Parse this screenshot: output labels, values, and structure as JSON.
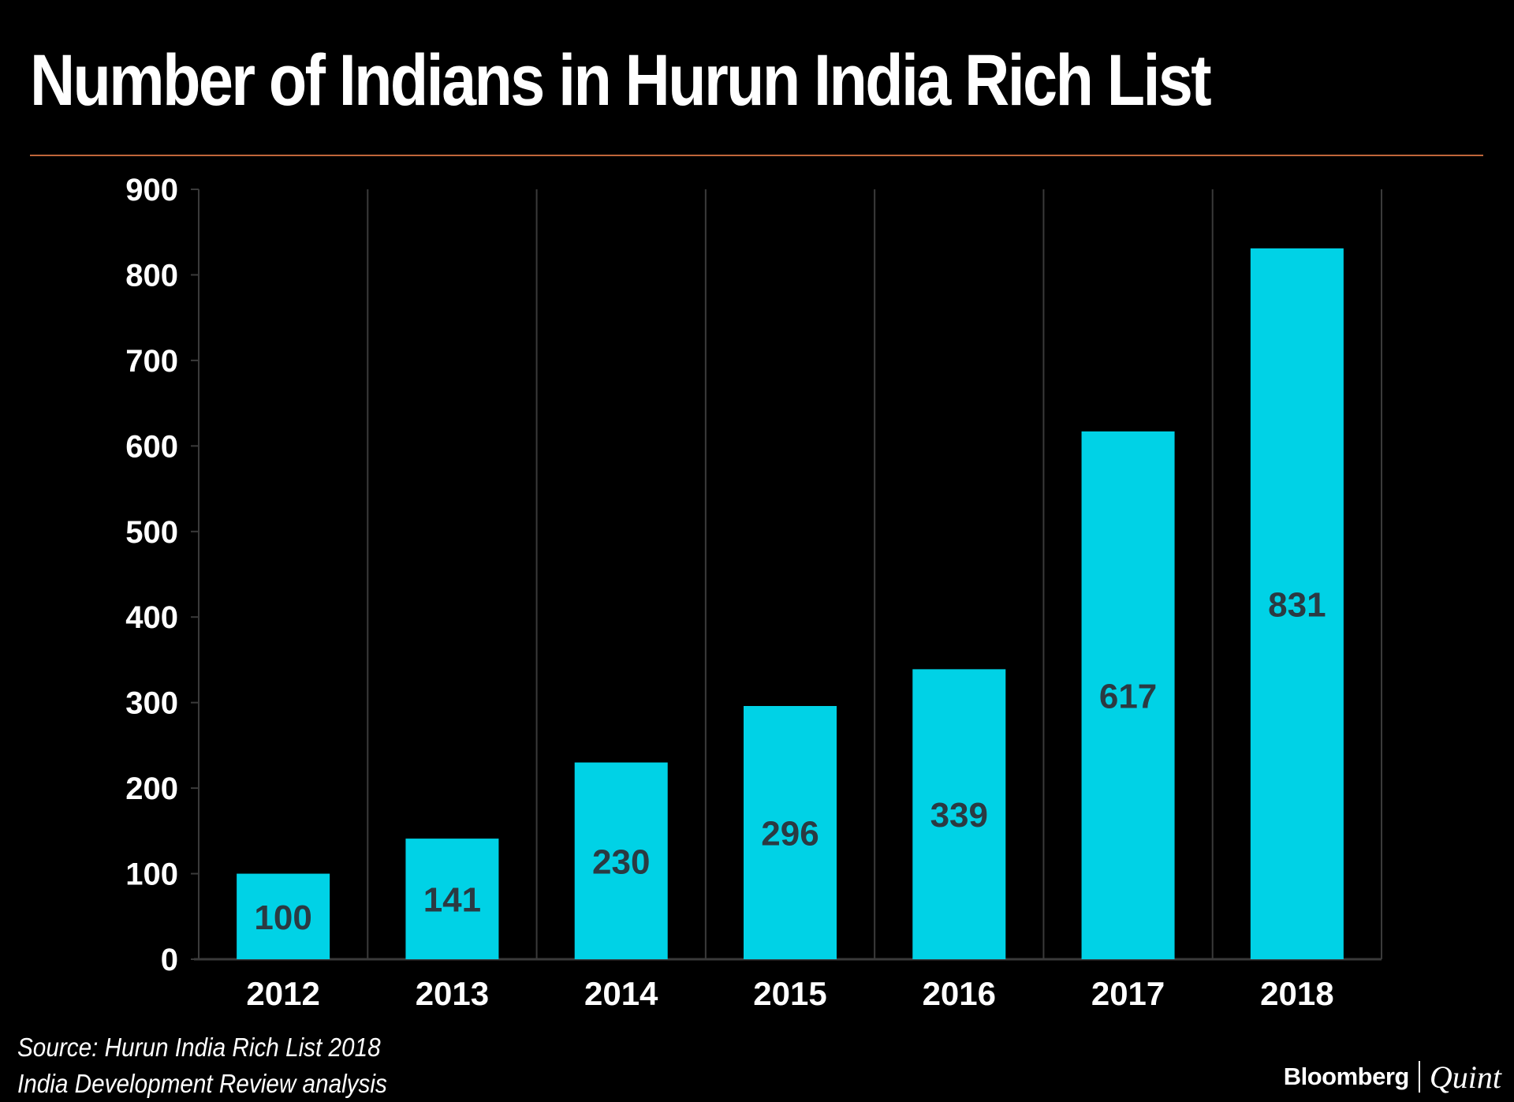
{
  "title": "Number of Indians in Hurun India Rich List",
  "footer": {
    "source_line1": "Source: Hurun India Rich List 2018",
    "source_line2": "India Development Review analysis",
    "brand_left": "Bloomberg",
    "brand_right": "Quint"
  },
  "colors": {
    "background": "#000000",
    "bar": "#00d2e6",
    "bar_label": "#2b3a42",
    "rule": "#c0663a",
    "grid": "#3a3a3a",
    "text": "#ffffff"
  },
  "chart_data": {
    "type": "bar",
    "title": "Number of Indians in Hurun India Rich List",
    "categories": [
      "2012",
      "2013",
      "2014",
      "2015",
      "2016",
      "2017",
      "2018"
    ],
    "values": [
      100,
      141,
      230,
      296,
      339,
      617,
      831
    ],
    "data_labels": [
      "100",
      "141",
      "230",
      "296",
      "339",
      "617",
      "831"
    ],
    "ylim": [
      0,
      900
    ],
    "yticks": [
      0,
      100,
      200,
      300,
      400,
      500,
      600,
      700,
      800,
      900
    ],
    "xlabel": "",
    "ylabel": "",
    "grid": "vertical",
    "legend": "none"
  }
}
